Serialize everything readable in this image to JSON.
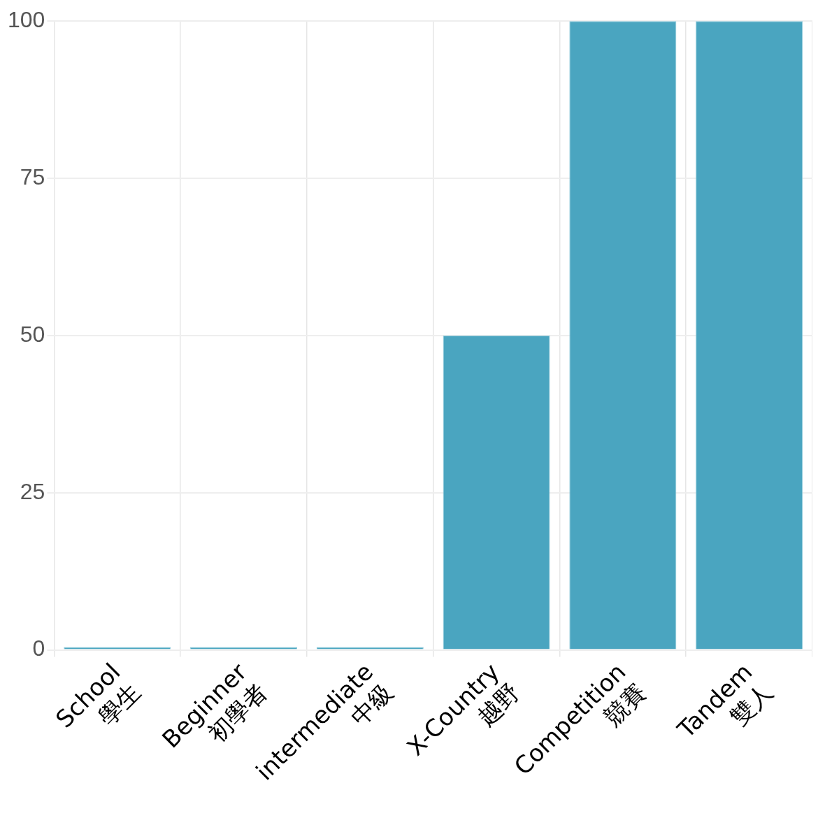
{
  "chart_data": {
    "type": "bar",
    "categories": [
      "School\n學生",
      "Beginner\n初學者",
      "intermediate\n中級",
      "X-Country\n越野",
      "Competition\n競賽",
      "Tandem\n雙人"
    ],
    "values": [
      0,
      0,
      0,
      50,
      100,
      100
    ],
    "color": "#4aa5c0",
    "ylim": [
      0,
      100
    ],
    "yticks": [
      0,
      25,
      50,
      75,
      100
    ],
    "grid": true,
    "legend": false
  }
}
